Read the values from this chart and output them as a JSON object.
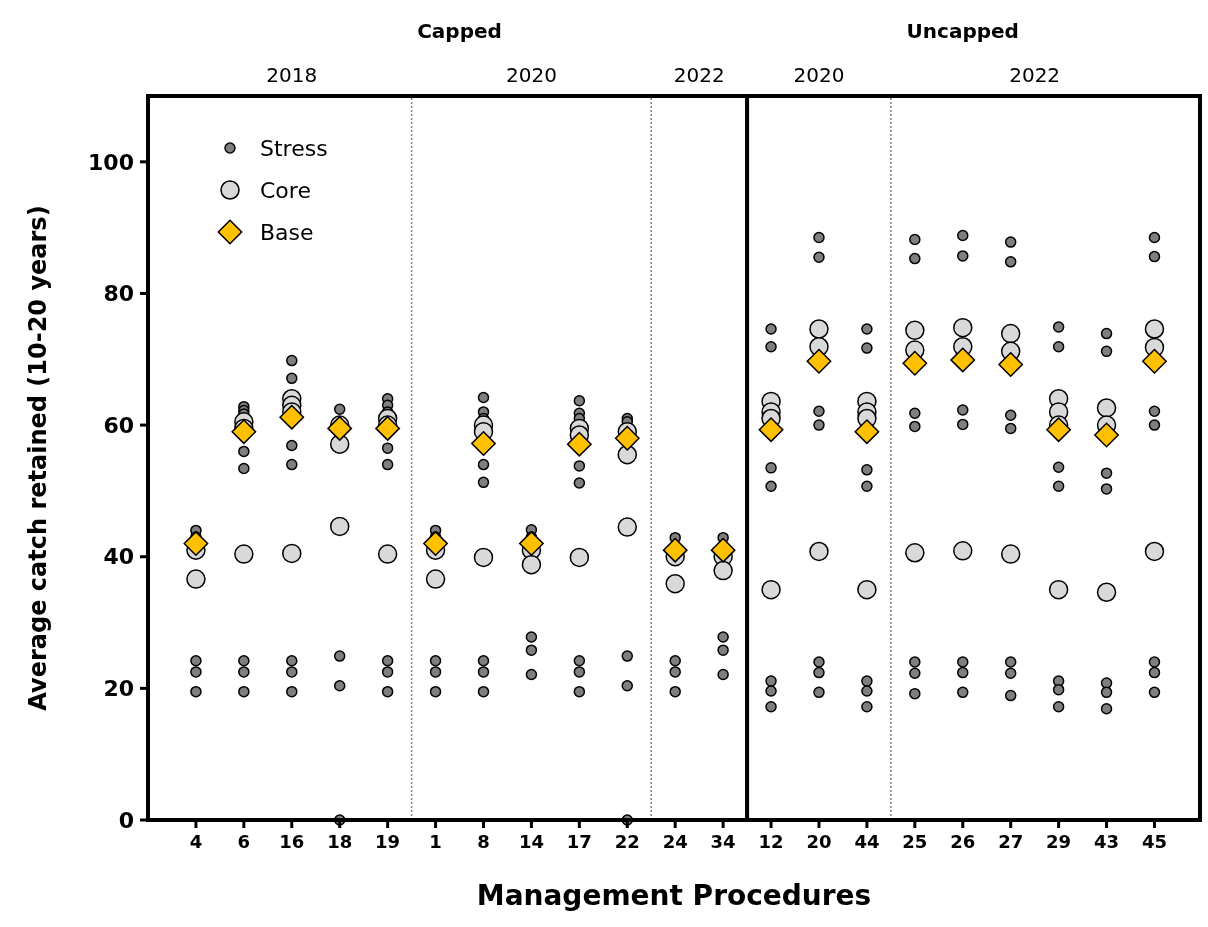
{
  "chart_data": {
    "type": "scatter",
    "xlabel": "Management Procedures",
    "ylabel": "Average catch retained (10-20 years)",
    "categories": [
      "4",
      "6",
      "16",
      "18",
      "19",
      "1",
      "8",
      "14",
      "17",
      "22",
      "24",
      "34",
      "12",
      "20",
      "44",
      "25",
      "26",
      "27",
      "29",
      "43",
      "45"
    ],
    "ylim": [
      0,
      110
    ],
    "yticks": [
      0,
      20,
      40,
      60,
      80,
      100
    ],
    "grid": false,
    "legend": "top left",
    "annotations": [
      "Capped",
      "Uncapped",
      "2018",
      "2020",
      "2022",
      "2020",
      "2022"
    ],
    "series": [
      {
        "name": "Stress",
        "color": "#7f7f7f",
        "marker": "circle",
        "x": [
          "4",
          "4",
          "4",
          "4",
          "4",
          "6",
          "6",
          "6",
          "6",
          "6",
          "6",
          "6",
          "6",
          "16",
          "16",
          "16",
          "16",
          "16",
          "16",
          "16",
          "18",
          "18",
          "18",
          "18",
          "19",
          "19",
          "19",
          "19",
          "19",
          "19",
          "19",
          "19",
          "1",
          "1",
          "1",
          "1",
          "1",
          "8",
          "8",
          "8",
          "8",
          "8",
          "8",
          "8",
          "8",
          "14",
          "14",
          "14",
          "14",
          "14",
          "17",
          "17",
          "17",
          "17",
          "17",
          "17",
          "17",
          "17",
          "22",
          "22",
          "22",
          "22",
          "22",
          "24",
          "24",
          "24",
          "24",
          "34",
          "34",
          "34",
          "34",
          "12",
          "12",
          "12",
          "12",
          "12",
          "12",
          "12",
          "20",
          "20",
          "20",
          "20",
          "20",
          "20",
          "20",
          "44",
          "44",
          "44",
          "44",
          "44",
          "44",
          "44",
          "25",
          "25",
          "25",
          "25",
          "25",
          "25",
          "25",
          "26",
          "26",
          "26",
          "26",
          "26",
          "26",
          "26",
          "27",
          "27",
          "27",
          "27",
          "27",
          "27",
          "27",
          "29",
          "29",
          "29",
          "29",
          "29",
          "29",
          "29",
          "43",
          "43",
          "43",
          "43",
          "43",
          "43",
          "43",
          "45",
          "45",
          "45",
          "45",
          "45",
          "45",
          "45"
        ],
        "values": [
          44,
          43,
          24.2,
          22.5,
          19.5,
          62.8,
          62.2,
          61.7,
          56,
          53.4,
          24.2,
          22.5,
          19.5,
          69.8,
          67.1,
          56.9,
          54,
          24.2,
          22.5,
          19.5,
          62.4,
          24.9,
          20.4,
          0,
          64,
          63,
          62,
          56.5,
          54,
          24.2,
          22.5,
          19.5,
          44,
          43,
          24.2,
          22.5,
          19.5,
          64.2,
          62,
          61,
          54,
          51.3,
          24.2,
          22.5,
          19.5,
          44.1,
          43,
          27.8,
          25.8,
          22.1,
          63.7,
          61.8,
          61,
          53.8,
          51.2,
          24.2,
          22.5,
          19.5,
          61,
          60.5,
          24.9,
          20.4,
          0,
          42.9,
          24.2,
          22.5,
          19.5,
          42.9,
          27.8,
          25.8,
          22.1,
          74.6,
          71.9,
          53.5,
          50.7,
          21.1,
          19.6,
          17.2,
          88.5,
          85.5,
          62.1,
          60,
          24,
          22.4,
          19.4,
          74.6,
          71.7,
          53.2,
          50.7,
          21.1,
          19.6,
          17.2,
          88.2,
          85.3,
          61.8,
          59.8,
          24,
          22.3,
          19.2,
          88.8,
          85.7,
          62.3,
          60.1,
          24,
          22.4,
          19.4,
          87.8,
          84.8,
          61.5,
          59.5,
          24,
          22.3,
          18.9,
          74.9,
          71.9,
          53.6,
          50.7,
          21.1,
          19.8,
          17.2,
          73.9,
          71.2,
          52.7,
          50.3,
          20.8,
          19.4,
          16.9,
          88.5,
          85.6,
          62.1,
          60,
          24,
          22.4,
          19.4
        ]
      },
      {
        "name": "Core",
        "color": "#d9d9d9",
        "marker": "circle",
        "x": [
          "4",
          "4",
          "6",
          "6",
          "6",
          "16",
          "16",
          "16",
          "16",
          "18",
          "18",
          "18",
          "19",
          "19",
          "19",
          "1",
          "1",
          "8",
          "8",
          "8",
          "14",
          "14",
          "17",
          "17",
          "17",
          "22",
          "22",
          "22",
          "24",
          "24",
          "34",
          "34",
          "12",
          "12",
          "12",
          "12",
          "20",
          "20",
          "20",
          "44",
          "44",
          "44",
          "44",
          "25",
          "25",
          "25",
          "26",
          "26",
          "26",
          "27",
          "27",
          "27",
          "29",
          "29",
          "29",
          "29",
          "43",
          "43",
          "43",
          "45",
          "45",
          "45"
        ],
        "values": [
          41,
          36.6,
          60.5,
          59.5,
          40.4,
          64,
          63,
          62,
          40.5,
          60,
          57.1,
          44.6,
          61,
          60,
          40.4,
          41,
          36.6,
          60,
          59,
          39.9,
          41,
          38.8,
          59.5,
          58.5,
          39.9,
          59,
          55.5,
          44.5,
          40,
          35.9,
          40,
          37.9,
          63.6,
          62,
          61,
          35,
          74.6,
          71.9,
          40.8,
          63.6,
          62,
          61,
          35,
          74.4,
          71.4,
          40.6,
          74.8,
          71.9,
          40.9,
          73.9,
          71.2,
          40.4,
          64,
          62,
          60,
          35,
          62.6,
          60,
          34.6,
          74.6,
          71.8,
          40.8
        ]
      },
      {
        "name": "Base",
        "color": "#ffc000",
        "marker": "diamond",
        "x": [
          "4",
          "6",
          "16",
          "18",
          "19",
          "1",
          "8",
          "14",
          "17",
          "22",
          "24",
          "34",
          "12",
          "20",
          "44",
          "25",
          "26",
          "27",
          "29",
          "43",
          "45"
        ],
        "values": [
          42,
          59,
          61.2,
          59.5,
          59.5,
          42,
          57.2,
          42,
          57.1,
          58,
          41,
          41,
          59.3,
          69.7,
          59,
          69.4,
          69.9,
          69.2,
          59.3,
          58.5,
          69.7
        ]
      }
    ]
  }
}
